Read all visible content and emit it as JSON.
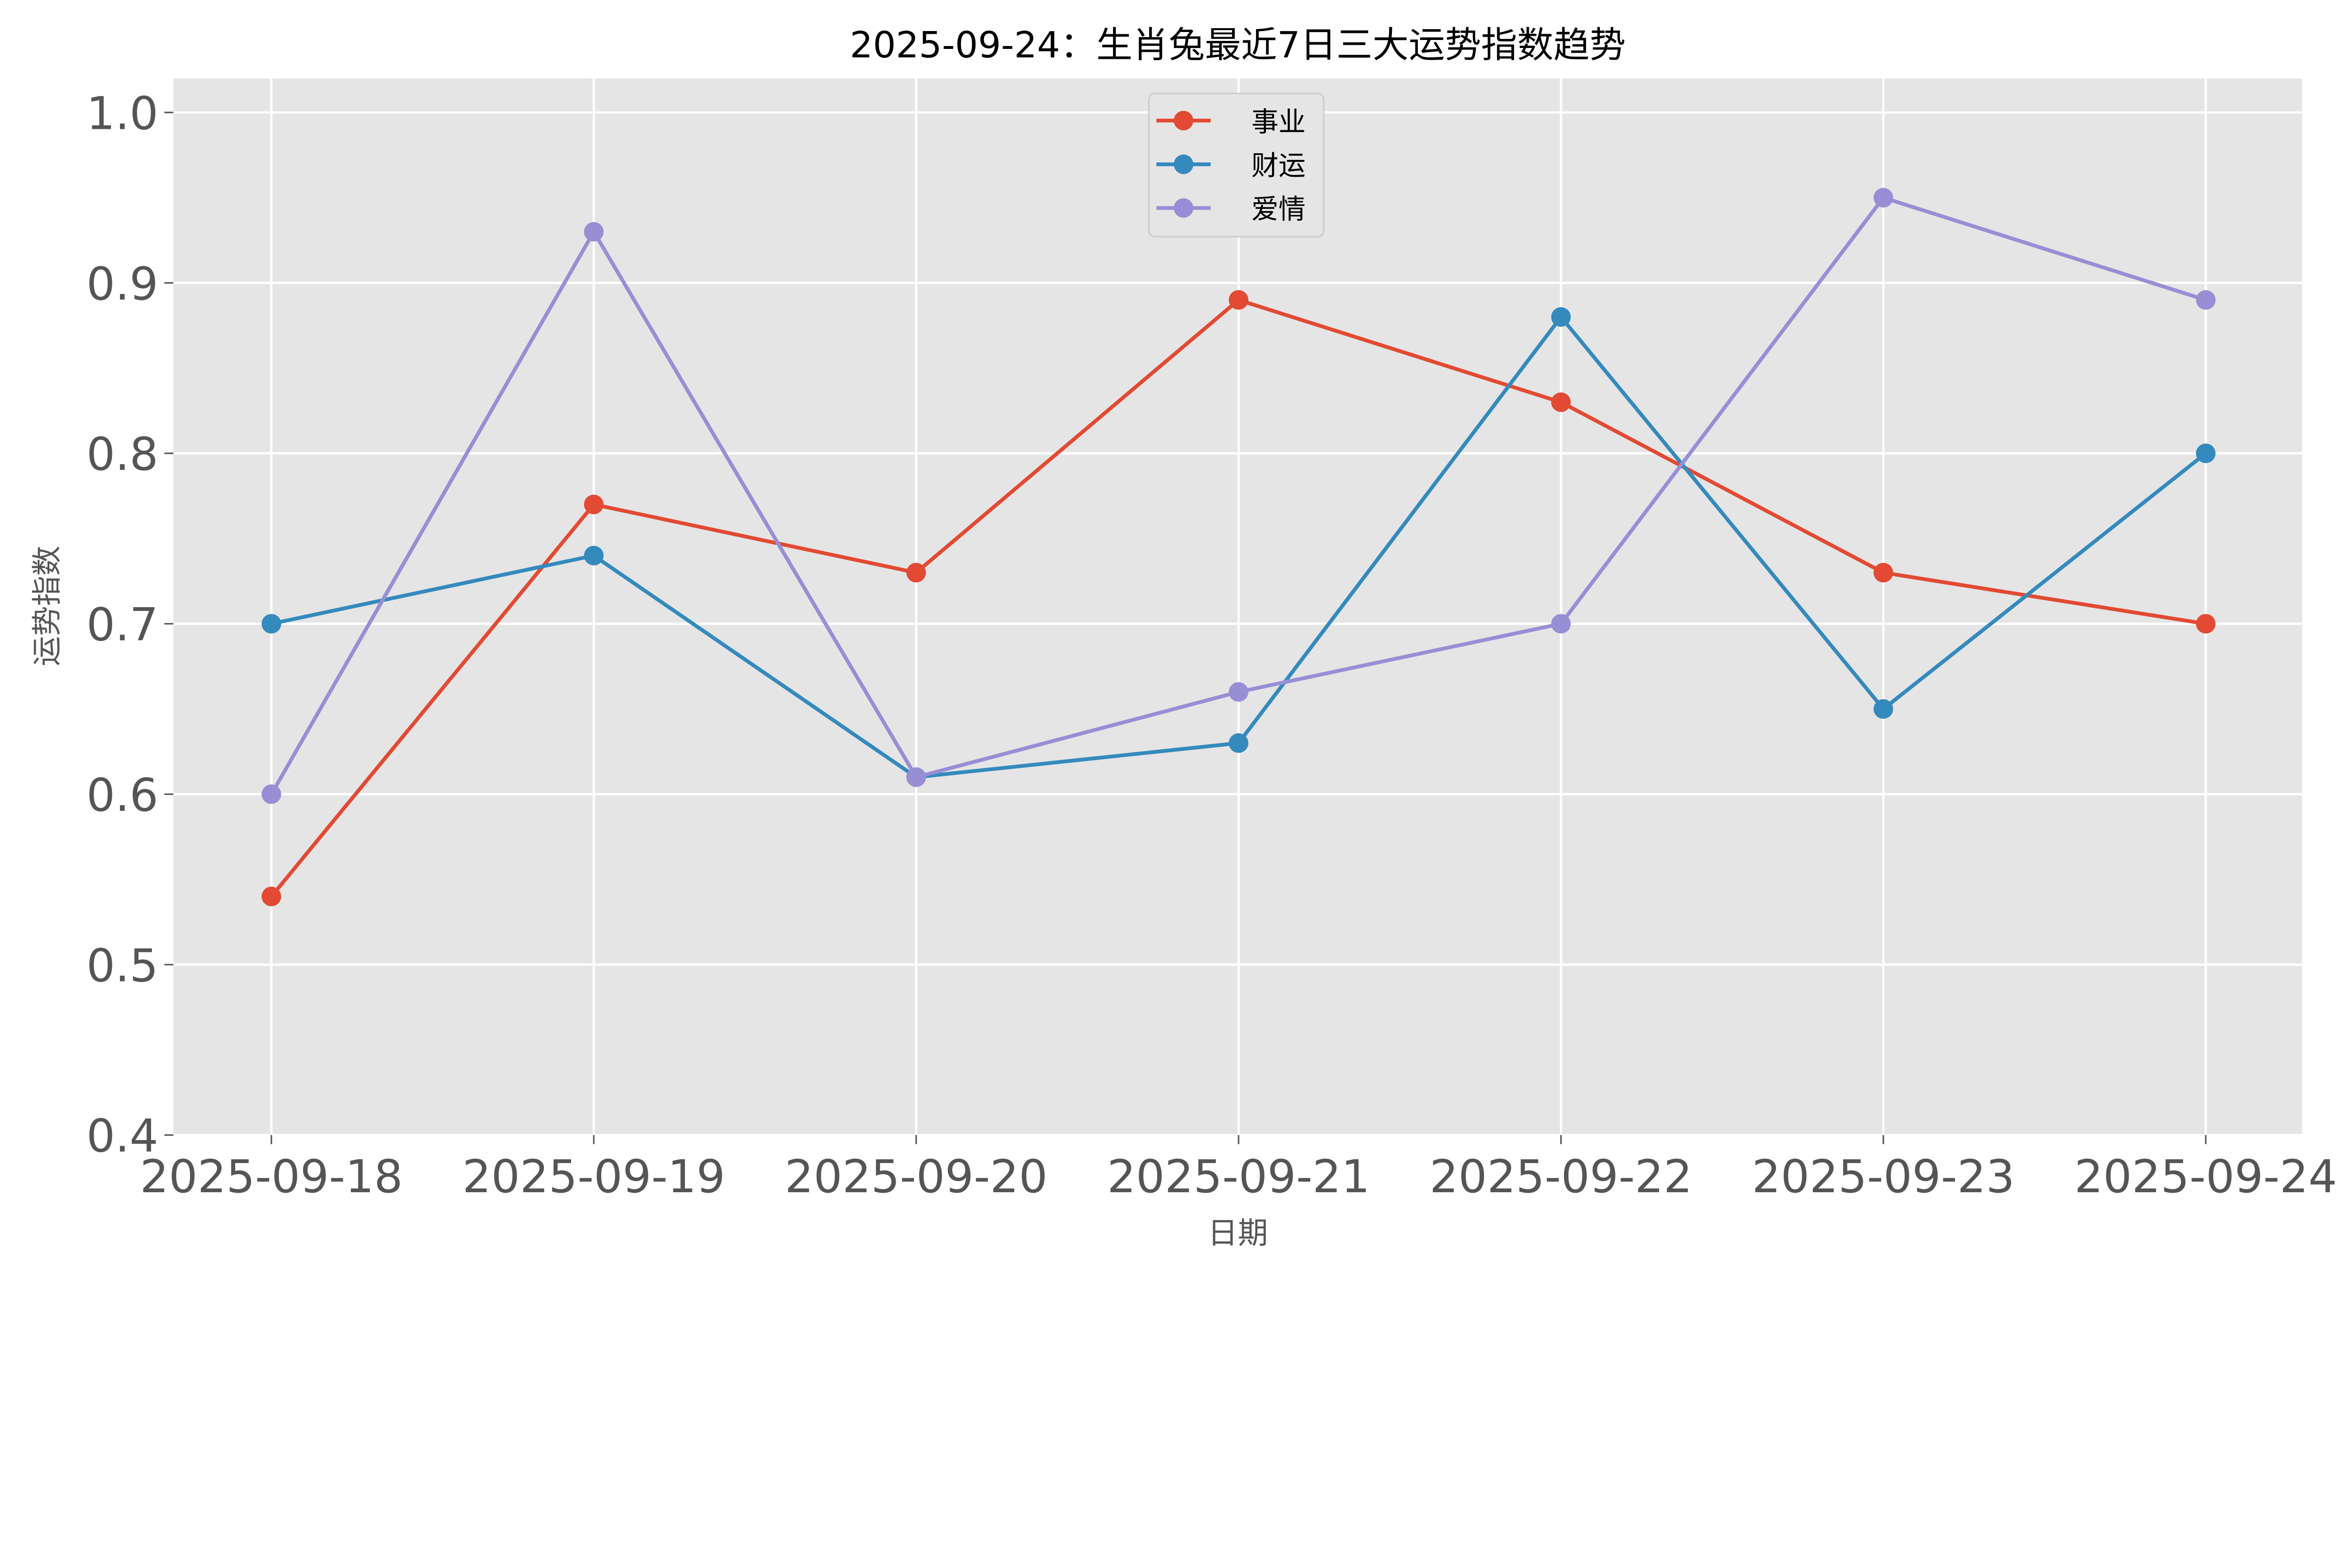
{
  "chart_data": {
    "type": "line",
    "title": "2025-09-24：生肖兔最近7日三大运势指数趋势",
    "xlabel": "日期",
    "ylabel": "运势指数",
    "categories": [
      "2025-09-18",
      "2025-09-19",
      "2025-09-20",
      "2025-09-21",
      "2025-09-22",
      "2025-09-23",
      "2025-09-24"
    ],
    "ylim": [
      0.4,
      1.02
    ],
    "yticks": [
      "0.4",
      "0.5",
      "0.6",
      "0.7",
      "0.8",
      "0.9",
      "1.0"
    ],
    "grid": true,
    "legend_placement": "upper-center",
    "series": [
      {
        "name": "事业",
        "color": "#E24A33",
        "values": [
          0.54,
          0.77,
          0.73,
          0.89,
          0.83,
          0.73,
          0.7
        ]
      },
      {
        "name": "财运",
        "color": "#348ABD",
        "values": [
          0.7,
          0.74,
          0.61,
          0.63,
          0.88,
          0.65,
          0.8
        ]
      },
      {
        "name": "爱情",
        "color": "#988ED5",
        "values": [
          0.6,
          0.93,
          0.61,
          0.66,
          0.7,
          0.95,
          0.89
        ]
      }
    ],
    "background": "#E5E5E5"
  }
}
